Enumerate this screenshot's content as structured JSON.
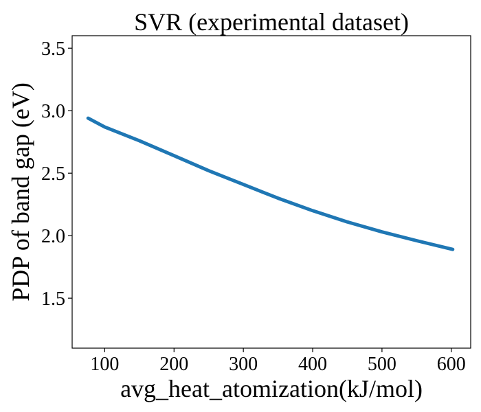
{
  "chart_data": {
    "type": "line",
    "title": "SVR (experimental dataset)",
    "xlabel": "avg_heat_atomization(kJ/mol)",
    "ylabel": "PDP of band gap (eV)",
    "xlim": [
      53,
      628
    ],
    "ylim": [
      1.1,
      3.6
    ],
    "xticks": [
      100,
      200,
      300,
      400,
      500,
      600
    ],
    "yticks": [
      1.5,
      2.0,
      2.5,
      3.0,
      3.5
    ],
    "xtick_labels": [
      "100",
      "200",
      "300",
      "400",
      "500",
      "600"
    ],
    "ytick_labels": [
      "1.5",
      "2.0",
      "2.5",
      "3.0",
      "3.5"
    ],
    "grid": false,
    "line_color": "#1f77b4",
    "series": [
      {
        "x": [
          76,
          100,
          150,
          200,
          250,
          300,
          350,
          400,
          450,
          500,
          550,
          602
        ],
        "y": [
          2.94,
          2.87,
          2.76,
          2.64,
          2.52,
          2.41,
          2.3,
          2.2,
          2.11,
          2.03,
          1.96,
          1.89
        ]
      }
    ]
  }
}
